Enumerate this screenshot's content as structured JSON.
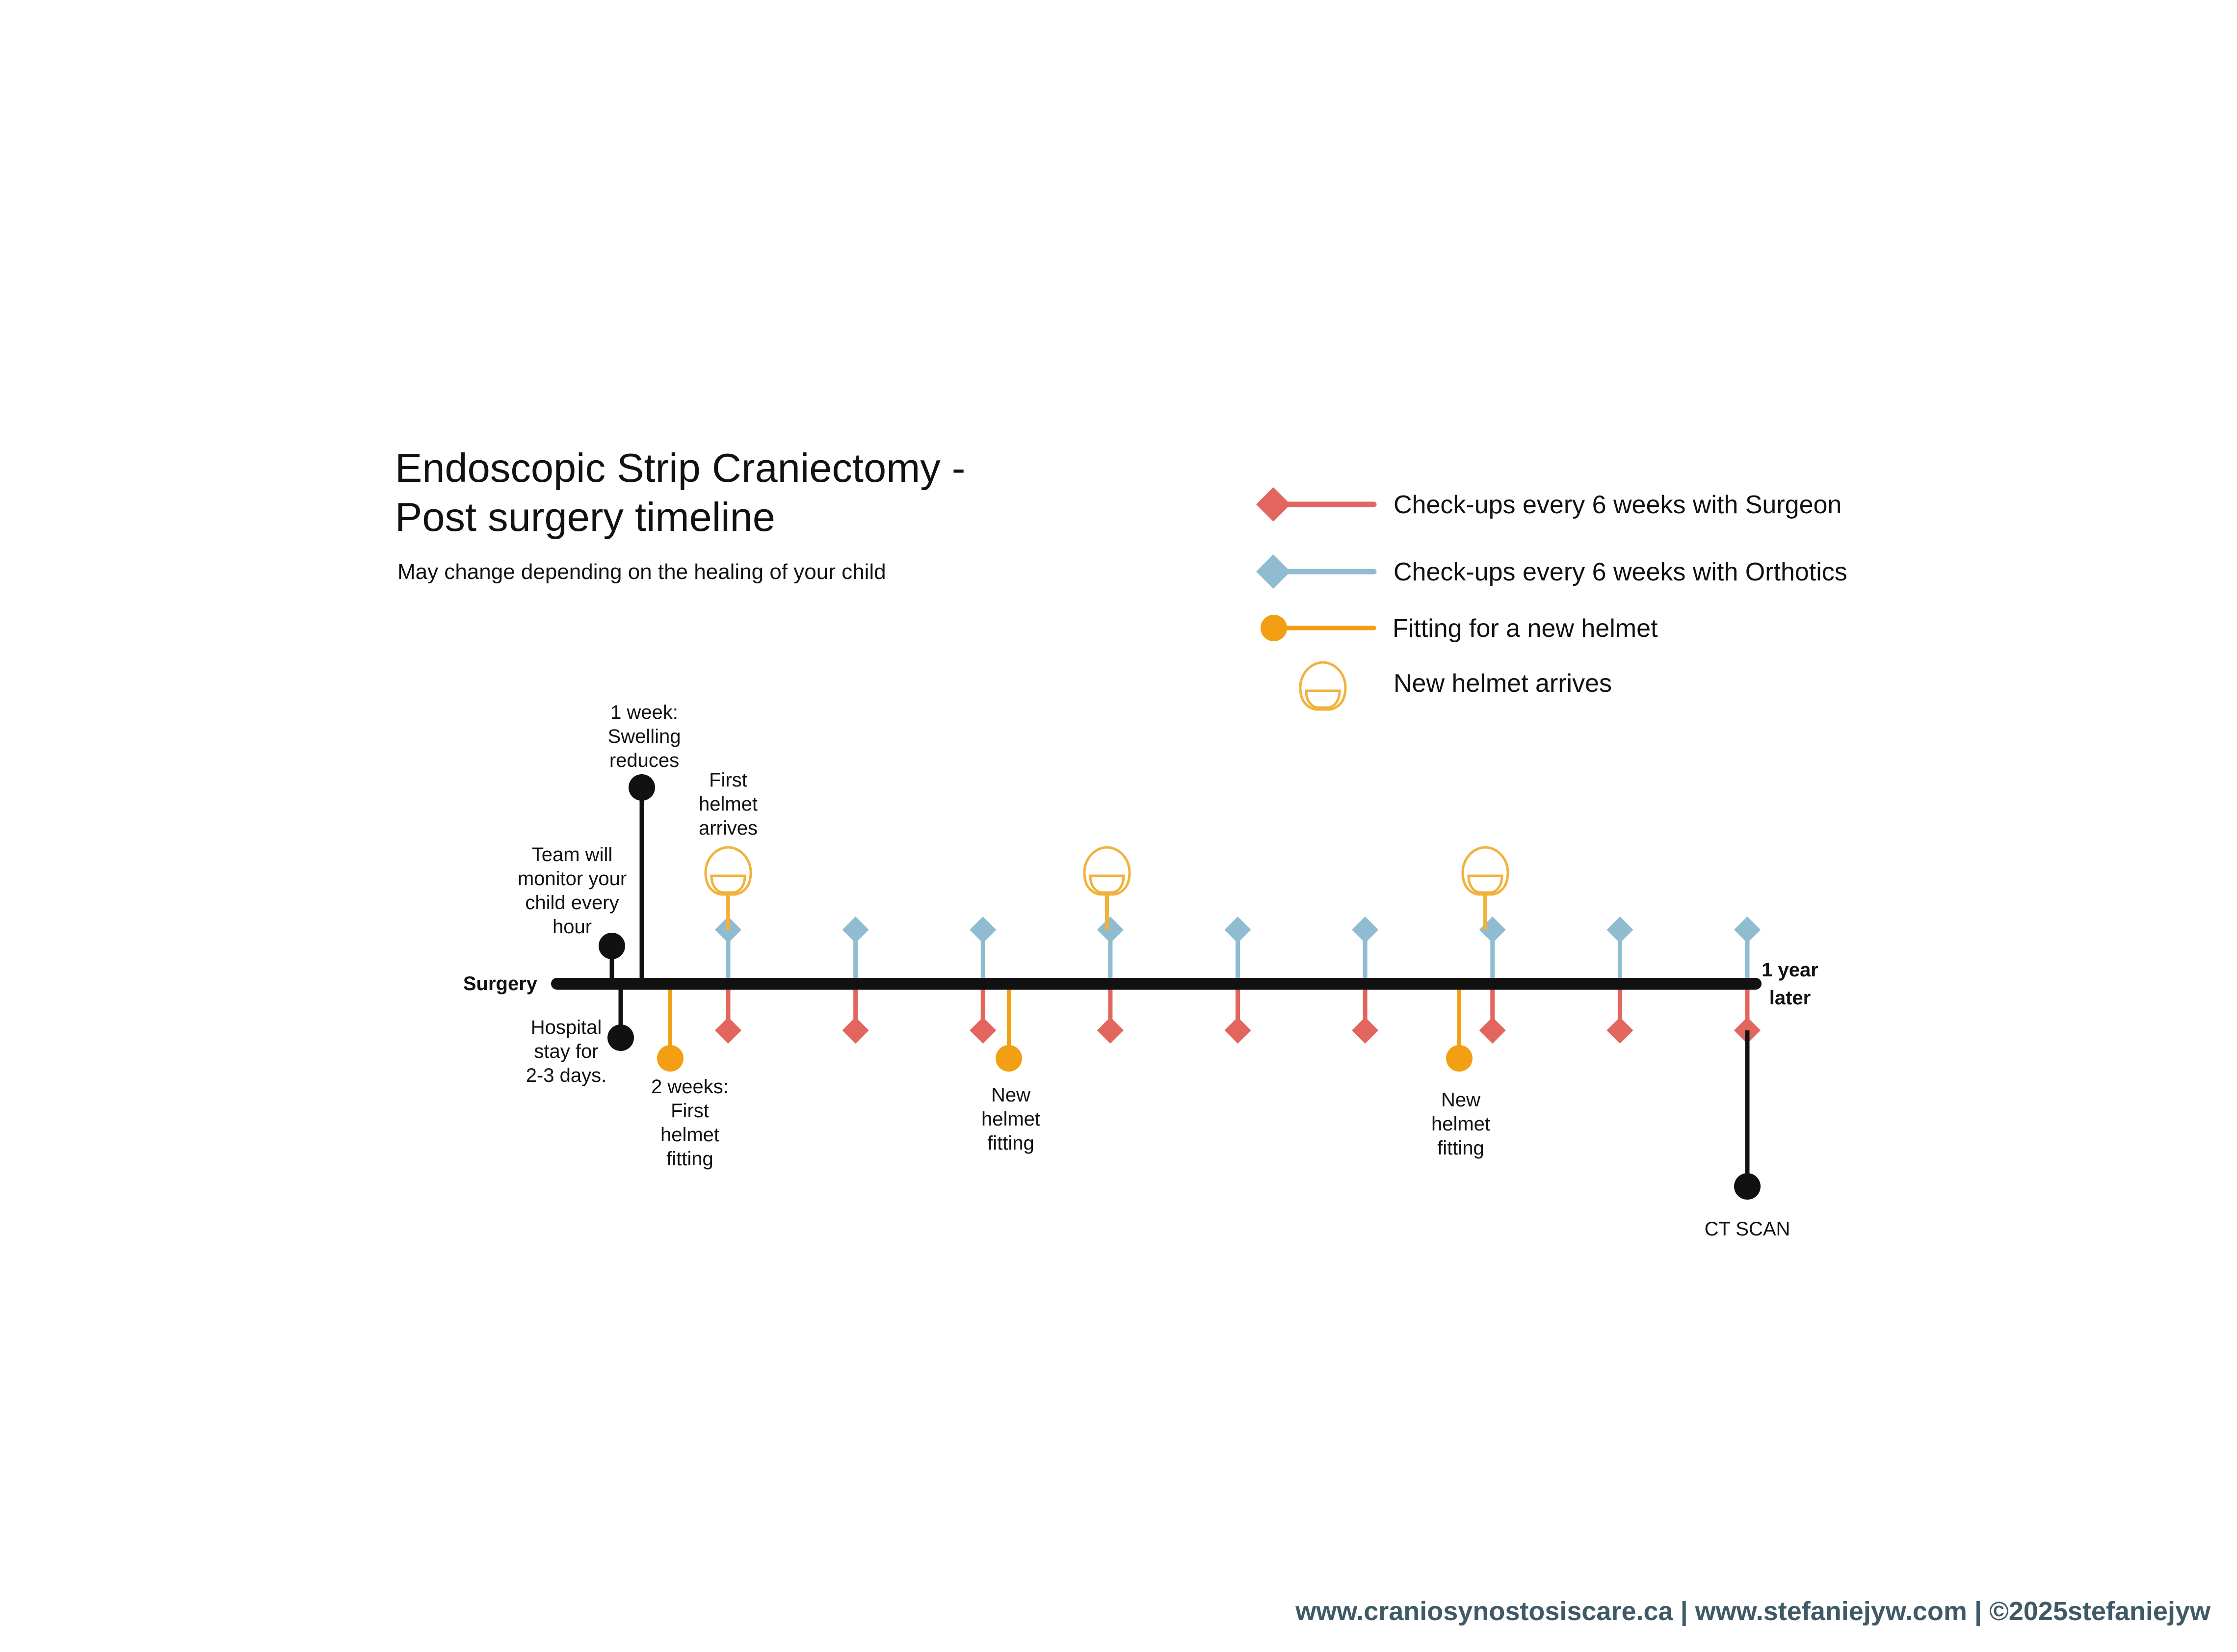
{
  "title": [
    "Endoscopic Strip Craniectomy -",
    "Post surgery timeline"
  ],
  "subtitle": "May change depending on the healing of your child",
  "colors": {
    "surgeon": "#e2655e",
    "orthotics": "#8fbcd0",
    "fitting": "#f29f13",
    "helmet": "#f0b23c",
    "timeline": "#111111",
    "footer": "#3f5a66"
  },
  "legend": {
    "surgeon": "Check-ups every 6 weeks with Surgeon",
    "orthotics": "Check-ups every 6 weeks with Orthotics",
    "fitting": "Fitting for a new helmet",
    "helmet": "New helmet arrives"
  },
  "timeline": {
    "start_label": "Surgery",
    "end_label": [
      "1 year",
      "later"
    ]
  },
  "events": {
    "team_monitor": [
      "Team will",
      "monitor your",
      "child every",
      "hour"
    ],
    "swelling": [
      "1 week:",
      "Swelling",
      "reduces"
    ],
    "hospital": [
      "Hospital",
      "stay for",
      "2-3 days."
    ],
    "first_fitting": [
      "2 weeks:",
      "First",
      "helmet",
      "fitting"
    ],
    "first_helmet": [
      "First",
      "helmet",
      "arrives"
    ],
    "new_fitting_1": [
      "New",
      "helmet",
      "fitting"
    ],
    "new_fitting_2": [
      "New",
      "helmet",
      "fitting"
    ],
    "ct_scan": "CT SCAN"
  },
  "checkup_count": 9,
  "footer": "www.craniosynostosiscare.ca | www.stefaniejyw.com | ©2025stefaniejyw"
}
